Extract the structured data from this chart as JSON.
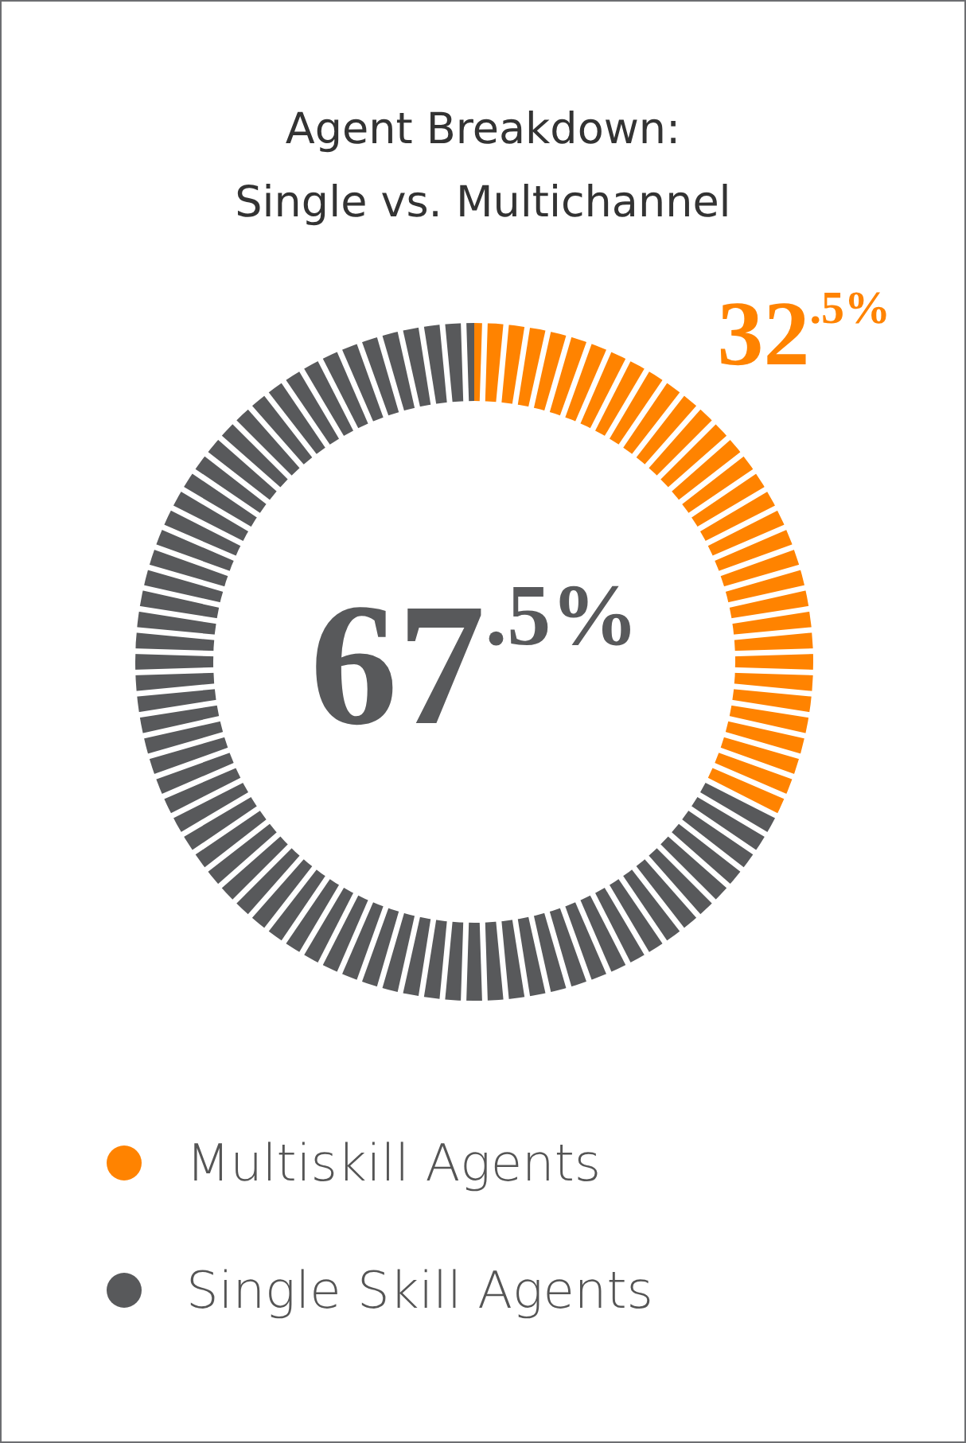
{
  "chart_data": {
    "type": "donut",
    "title": "Agent Breakdown:\nSingle vs. Multichannel",
    "categories": [
      "Multiskill Agents",
      "Single Skill Agents"
    ],
    "values": [
      32.5,
      67.5
    ],
    "colors": [
      "#ff8300",
      "#58595b"
    ],
    "value_labels": [
      "32$^{.5%}$",
      "67$^{.5%}$"
    ],
    "legend": "bottom"
  }
}
